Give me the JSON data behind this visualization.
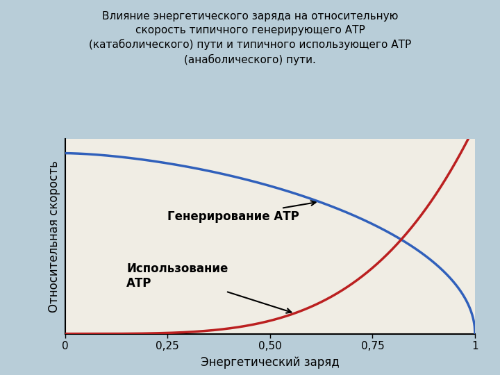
{
  "title": "Влияние энергетического заряда на относительную\nскорость типичного генерирующего АТР\n(катаболического) пути и типичного использующего АТР\n(анаболического) пути.",
  "xlabel": "Энергетический заряд",
  "ylabel": "Относительная скорость",
  "background_color": "#b8cdd8",
  "plot_bg_color": "#f0ede4",
  "xticks": [
    0,
    0.25,
    0.5,
    0.75,
    1
  ],
  "xticklabels": [
    "0",
    "0,25",
    "0,50",
    "0,75",
    "1"
  ],
  "xlim": [
    0,
    1.0
  ],
  "ylim": [
    0,
    1.08
  ],
  "catabolic_color": "#3060bb",
  "anabolic_color": "#bb2020",
  "label_catabolic": "Генерирование АТР",
  "label_anabolic": "Использование\nАТР",
  "title_fontsize": 11,
  "axis_label_fontsize": 12,
  "tick_fontsize": 11,
  "annot_fontsize": 12
}
